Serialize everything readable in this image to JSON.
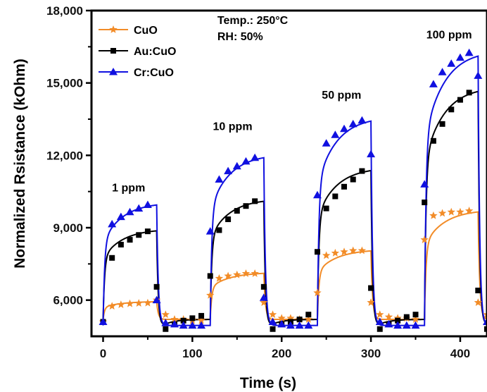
{
  "chart_data": {
    "type": "line",
    "xlabel": "Time (s)",
    "ylabel": "Normalized Rsistance (kOhm)",
    "xlim": [
      -13,
      430
    ],
    "ylim": [
      4500,
      18000
    ],
    "xticks": [
      0,
      100,
      200,
      300,
      400
    ],
    "xtick_labels": [
      "0",
      "100",
      "200",
      "300",
      "400"
    ],
    "yticks": [
      6000,
      9000,
      12000,
      15000,
      18000
    ],
    "ytick_labels": [
      "6,000",
      "9,000",
      "12,000",
      "15,000",
      "18,000"
    ],
    "grid": false,
    "legend_position": "top-left",
    "annotations": [
      {
        "text": "Temp.: 250°C",
        "x": 128,
        "y": 17450
      },
      {
        "text": "RH: 50%",
        "x": 128,
        "y": 16780
      },
      {
        "text": "1 ppm",
        "x": 10,
        "y": 10500
      },
      {
        "text": "10 ppm",
        "x": 123,
        "y": 13050
      },
      {
        "text": "50 ppm",
        "x": 245,
        "y": 14350
      },
      {
        "text": "100 ppm",
        "x": 362,
        "y": 16850
      }
    ],
    "pulses": [
      {
        "on": 0,
        "off": 60,
        "label": "1 ppm"
      },
      {
        "on": 120,
        "off": 180,
        "label": "10 ppm"
      },
      {
        "on": 240,
        "off": 300,
        "label": "50 ppm"
      },
      {
        "on": 360,
        "off": 420,
        "label": "100 ppm"
      }
    ],
    "series": [
      {
        "name": "CuO",
        "color": "#f28c28",
        "marker": "star",
        "baseline": 5200,
        "plateau": [
          5950,
          7150,
          8100,
          9750
        ],
        "x": [
          0,
          10,
          20,
          30,
          40,
          50,
          60,
          70,
          80,
          90,
          100,
          110,
          120,
          130,
          140,
          150,
          160,
          170,
          180,
          190,
          200,
          210,
          220,
          230,
          240,
          250,
          260,
          270,
          280,
          290,
          300,
          310,
          320,
          330,
          340,
          350,
          360,
          370,
          380,
          390,
          400,
          410,
          420,
          430
        ],
        "y": [
          5100,
          5750,
          5810,
          5850,
          5870,
          5880,
          6000,
          5400,
          5200,
          5200,
          5150,
          5150,
          6200,
          6900,
          7000,
          7050,
          7100,
          7100,
          5900,
          5400,
          5250,
          5250,
          5200,
          5200,
          6300,
          7850,
          7950,
          8000,
          8050,
          8050,
          5900,
          5400,
          5300,
          5250,
          5250,
          5200,
          8500,
          9500,
          9600,
          9650,
          9650,
          9700,
          5900,
          5400
        ]
      },
      {
        "name": "Au:CuO",
        "color": "#000000",
        "marker": "square",
        "baseline": 5200,
        "plateau": [
          8950,
          10200,
          11500,
          14850
        ],
        "x": [
          0,
          10,
          20,
          30,
          40,
          50,
          60,
          70,
          80,
          90,
          100,
          110,
          120,
          130,
          140,
          150,
          160,
          170,
          180,
          190,
          200,
          210,
          220,
          230,
          240,
          250,
          260,
          270,
          280,
          290,
          300,
          310,
          320,
          330,
          340,
          350,
          360,
          370,
          380,
          390,
          400,
          410,
          420,
          430
        ],
        "y": [
          5100,
          7750,
          8300,
          8500,
          8700,
          8850,
          6550,
          4800,
          5000,
          5150,
          5250,
          5350,
          7000,
          8900,
          9350,
          9700,
          9900,
          10100,
          6550,
          4800,
          5000,
          5100,
          5200,
          5400,
          8000,
          9800,
          10300,
          10700,
          11000,
          11350,
          6500,
          4800,
          5000,
          5150,
          5300,
          5400,
          10050,
          12600,
          13300,
          13900,
          14300,
          14600,
          6400,
          4800
        ]
      },
      {
        "name": "Cr:CuO",
        "color": "#1010e0",
        "marker": "triangle",
        "baseline": 4950,
        "plateau": [
          10050,
          12050,
          13600,
          16350
        ],
        "x": [
          0,
          10,
          20,
          30,
          40,
          50,
          60,
          70,
          80,
          90,
          100,
          110,
          120,
          130,
          140,
          150,
          160,
          170,
          180,
          190,
          200,
          210,
          220,
          230,
          240,
          250,
          260,
          270,
          280,
          290,
          300,
          310,
          320,
          330,
          340,
          350,
          360,
          370,
          380,
          390,
          400,
          410,
          420,
          430
        ],
        "y": [
          5100,
          9150,
          9450,
          9650,
          9800,
          9950,
          6000,
          5050,
          5000,
          4950,
          4950,
          4950,
          8850,
          11000,
          11350,
          11550,
          11750,
          11900,
          6100,
          5100,
          5000,
          4950,
          4950,
          4950,
          10350,
          12500,
          12850,
          13100,
          13300,
          13450,
          12050,
          5100,
          5000,
          4950,
          4950,
          4950,
          10800,
          14950,
          15450,
          15800,
          16050,
          16250,
          15300,
          5100
        ]
      }
    ]
  }
}
